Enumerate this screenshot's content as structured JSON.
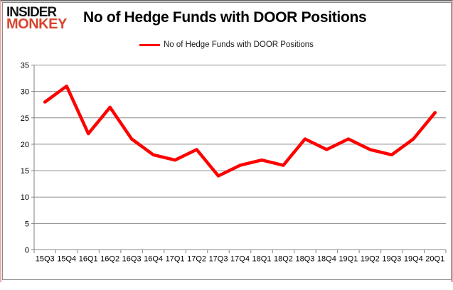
{
  "brand": {
    "line1": "INSIDER",
    "line2": "MONKEY"
  },
  "title": "No of Hedge Funds with DOOR Positions",
  "legend": {
    "label": "No of Hedge Funds with DOOR Positions"
  },
  "colors": {
    "series_line": "#ff0000",
    "grid": "#8c8c8c",
    "axis": "#808080",
    "tick_label": "#000000",
    "brand_red": "#d7452f",
    "bottom_bar_red": "#ea0e0e",
    "frame_pink": "#ecacac"
  },
  "chart_data": {
    "type": "line",
    "title": "No of Hedge Funds with DOOR Positions",
    "categories": [
      "15Q3",
      "15Q4",
      "16Q1",
      "16Q2",
      "16Q3",
      "16Q4",
      "17Q1",
      "17Q2",
      "17Q3",
      "17Q4",
      "18Q1",
      "18Q2",
      "18Q3",
      "18Q4",
      "19Q1",
      "19Q2",
      "19Q3",
      "19Q4",
      "20Q1"
    ],
    "series": [
      {
        "name": "No of Hedge Funds with DOOR Positions",
        "color": "#ff0000",
        "values": [
          28,
          31,
          22,
          27,
          21,
          18,
          17,
          19,
          14,
          16,
          17,
          16,
          21,
          19,
          21,
          19,
          18,
          21,
          26
        ]
      }
    ],
    "xlabel": "",
    "ylabel": "",
    "ylim": [
      0,
      35
    ],
    "ytick_interval": 5,
    "grid": true,
    "legend_position": "top-center"
  }
}
